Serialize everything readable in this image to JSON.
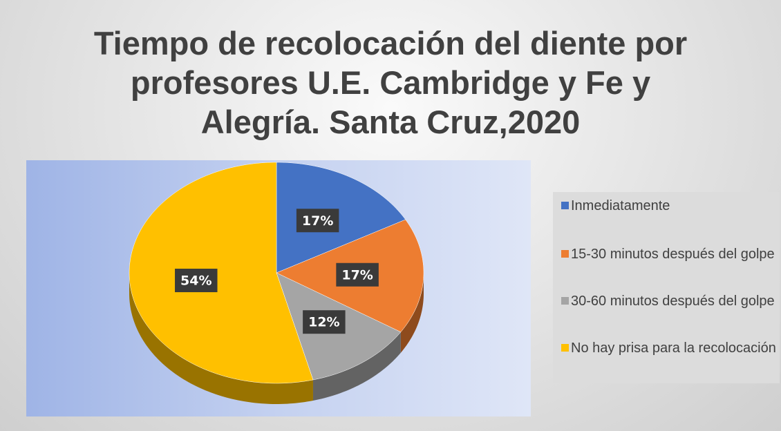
{
  "chart_data": {
    "type": "pie",
    "title": "Tiempo de recolocación del diente por profesores U.E. Cambridge y Fe y Alegría. Santa Cruz,2020",
    "categories": [
      "Inmediatamente",
      "15-30 minutos después del golpe",
      "30-60 minutos después del golpe",
      "No hay prisa para la recolocación"
    ],
    "values": [
      17,
      17,
      12,
      54
    ],
    "value_labels": [
      "17%",
      "17%",
      "12%",
      "54%"
    ],
    "colors": [
      "#4472c4",
      "#ed7d31",
      "#a5a5a5",
      "#ffc000"
    ],
    "legend": "right"
  }
}
